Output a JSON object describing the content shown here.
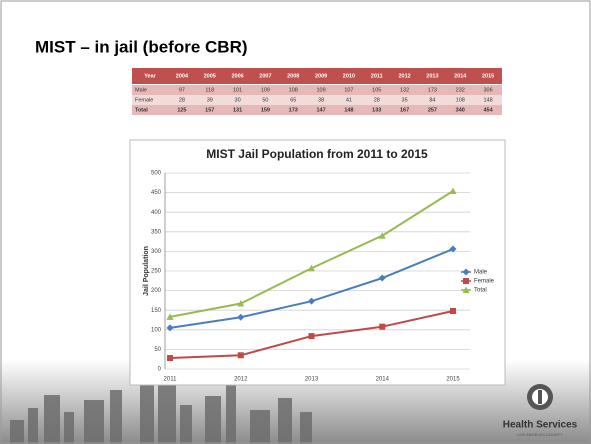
{
  "slide_title": "MIST – in jail (before CBR)",
  "table": {
    "header": [
      "Year",
      "2004",
      "2005",
      "2006",
      "2007",
      "2008",
      "2009",
      "2010",
      "2011",
      "2012",
      "2013",
      "2014",
      "2015"
    ],
    "rows": [
      [
        "Male",
        "97",
        "118",
        "101",
        "109",
        "108",
        "109",
        "107",
        "105",
        "132",
        "173",
        "232",
        "306"
      ],
      [
        "Female",
        "28",
        "39",
        "30",
        "50",
        "65",
        "38",
        "41",
        "28",
        "35",
        "84",
        "108",
        "148"
      ],
      [
        "Total",
        "125",
        "157",
        "131",
        "159",
        "173",
        "147",
        "148",
        "133",
        "167",
        "257",
        "340",
        "454"
      ]
    ]
  },
  "chart_data": {
    "type": "line",
    "title": "MIST Jail Population from 2011 to 2015",
    "y_label": "Jail Population",
    "categories": [
      "2011",
      "2012",
      "2013",
      "2014",
      "2015"
    ],
    "series": [
      {
        "name": "Male",
        "color": "#4a7ebb",
        "marker": "diamond",
        "values": [
          105,
          132,
          173,
          232,
          306
        ]
      },
      {
        "name": "Female",
        "color": "#be4b48",
        "marker": "square",
        "values": [
          28,
          35,
          84,
          108,
          148
        ]
      },
      {
        "name": "Total",
        "color": "#98b954",
        "marker": "triangle",
        "values": [
          133,
          167,
          257,
          340,
          454
        ]
      }
    ],
    "ylim": [
      0,
      500
    ],
    "yticks": [
      0,
      50,
      100,
      150,
      200,
      250,
      300,
      350,
      400,
      450,
      500
    ],
    "grid": true,
    "legend": "right"
  },
  "logo": {
    "name": "Health Services",
    "sub": "LOS ANGELES COUNTY"
  }
}
